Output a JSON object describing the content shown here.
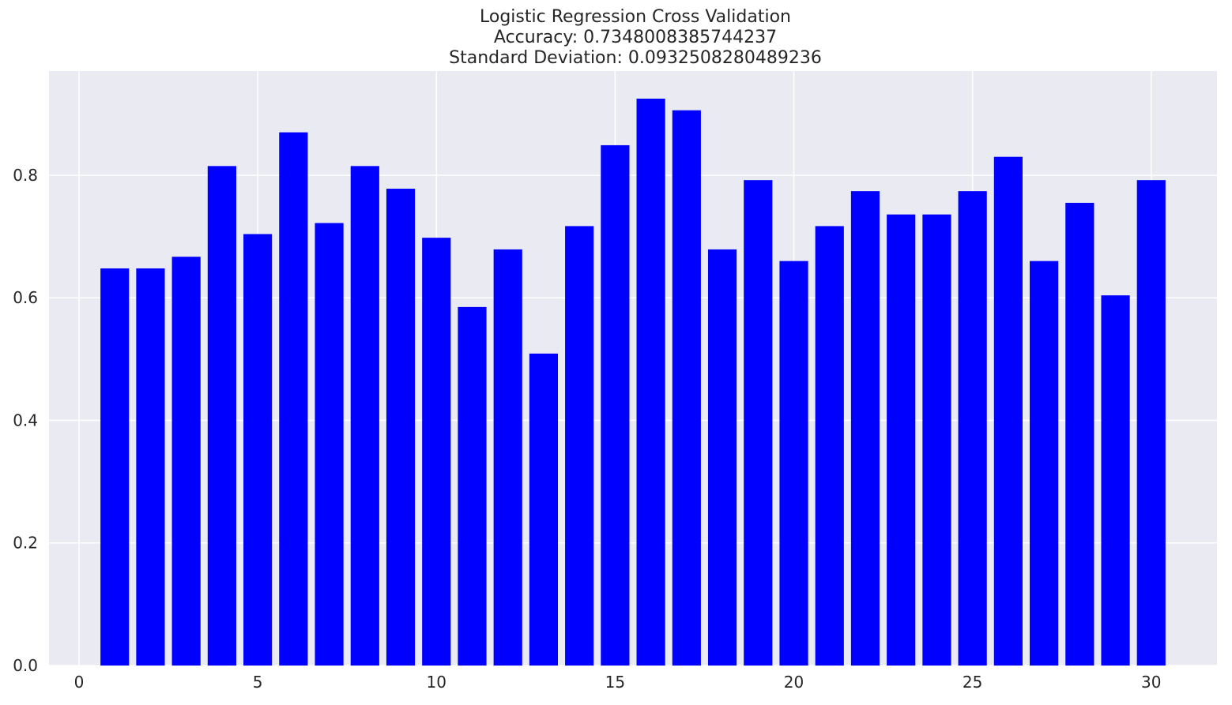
{
  "chart_data": {
    "type": "bar",
    "title_lines": [
      "Logistic Regression Cross Validation",
      "Accuracy: 0.7348008385744237",
      "Standard Deviation: 0.0932508280489236"
    ],
    "xlabel": "",
    "ylabel": "",
    "x": [
      1,
      2,
      3,
      4,
      5,
      6,
      7,
      8,
      9,
      10,
      11,
      12,
      13,
      14,
      15,
      16,
      17,
      18,
      19,
      20,
      21,
      22,
      23,
      24,
      25,
      26,
      27,
      28,
      29,
      30
    ],
    "values": [
      0.648,
      0.648,
      0.667,
      0.815,
      0.704,
      0.87,
      0.722,
      0.815,
      0.778,
      0.698,
      0.585,
      0.679,
      0.509,
      0.717,
      0.849,
      0.925,
      0.906,
      0.679,
      0.792,
      0.66,
      0.717,
      0.774,
      0.736,
      0.736,
      0.774,
      0.83,
      0.66,
      0.755,
      0.604,
      0.792
    ],
    "xlim": [
      -0.84,
      31.84
    ],
    "ylim": [
      0,
      0.97
    ],
    "xticks": [
      0,
      5,
      10,
      15,
      20,
      25,
      30
    ],
    "xtick_labels": [
      "0",
      "5",
      "10",
      "15",
      "20",
      "25",
      "30"
    ],
    "yticks": [
      0,
      0.2,
      0.4,
      0.6,
      0.8
    ],
    "ytick_labels": [
      "0.0",
      "0.2",
      "0.4",
      "0.6",
      "0.8"
    ],
    "bar_color": "#0000ff",
    "plot_background": "#eaeaf2",
    "grid_color": "#ffffff",
    "grid": true,
    "legend": "none"
  }
}
